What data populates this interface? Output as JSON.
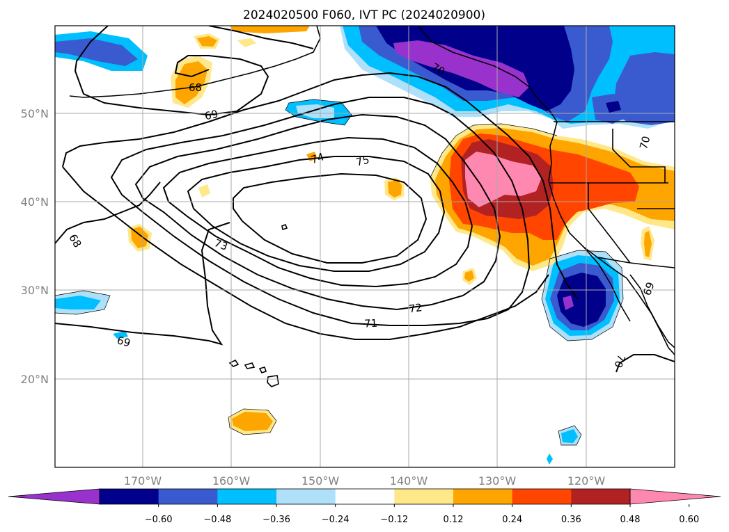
{
  "title": "2024020500 F060, IVT PC (2024020900)",
  "map": {
    "lon_labels": [
      "170°W",
      "160°W",
      "150°W",
      "140°W",
      "130°W",
      "120°W"
    ],
    "lat_labels": [
      "50°N",
      "40°N",
      "30°N",
      "20°N"
    ],
    "contour_labels": [
      "68",
      "69",
      "70",
      "70",
      "71",
      "72",
      "73",
      "74",
      "75",
      "68",
      "69",
      "69",
      "70"
    ]
  },
  "colorbar": {
    "tick_labels": [
      "−0.60",
      "−0.48",
      "−0.36",
      "−0.24",
      "−0.12",
      "0.12",
      "0.24",
      "0.36",
      "0.48",
      "0.60"
    ],
    "colors": [
      "#9932cc",
      "#00008b",
      "#3a5bd0",
      "#00bfff",
      "#aee0fa",
      "#ffffff",
      "#ffe88a",
      "#ffa500",
      "#ff4500",
      "#b22222",
      "#ff88b0"
    ]
  },
  "colors": {
    "neg_strong": "#00008b",
    "neg_extreme": "#9932cc",
    "neg_mid": "#3a5bd0",
    "neg_light": "#00bfff",
    "neg_faint": "#aee0fa",
    "pos_faint": "#ffe88a",
    "pos_light": "#ffa500",
    "pos_mid": "#ff4500",
    "pos_strong": "#b22222",
    "pos_extreme": "#ff88b0"
  }
}
